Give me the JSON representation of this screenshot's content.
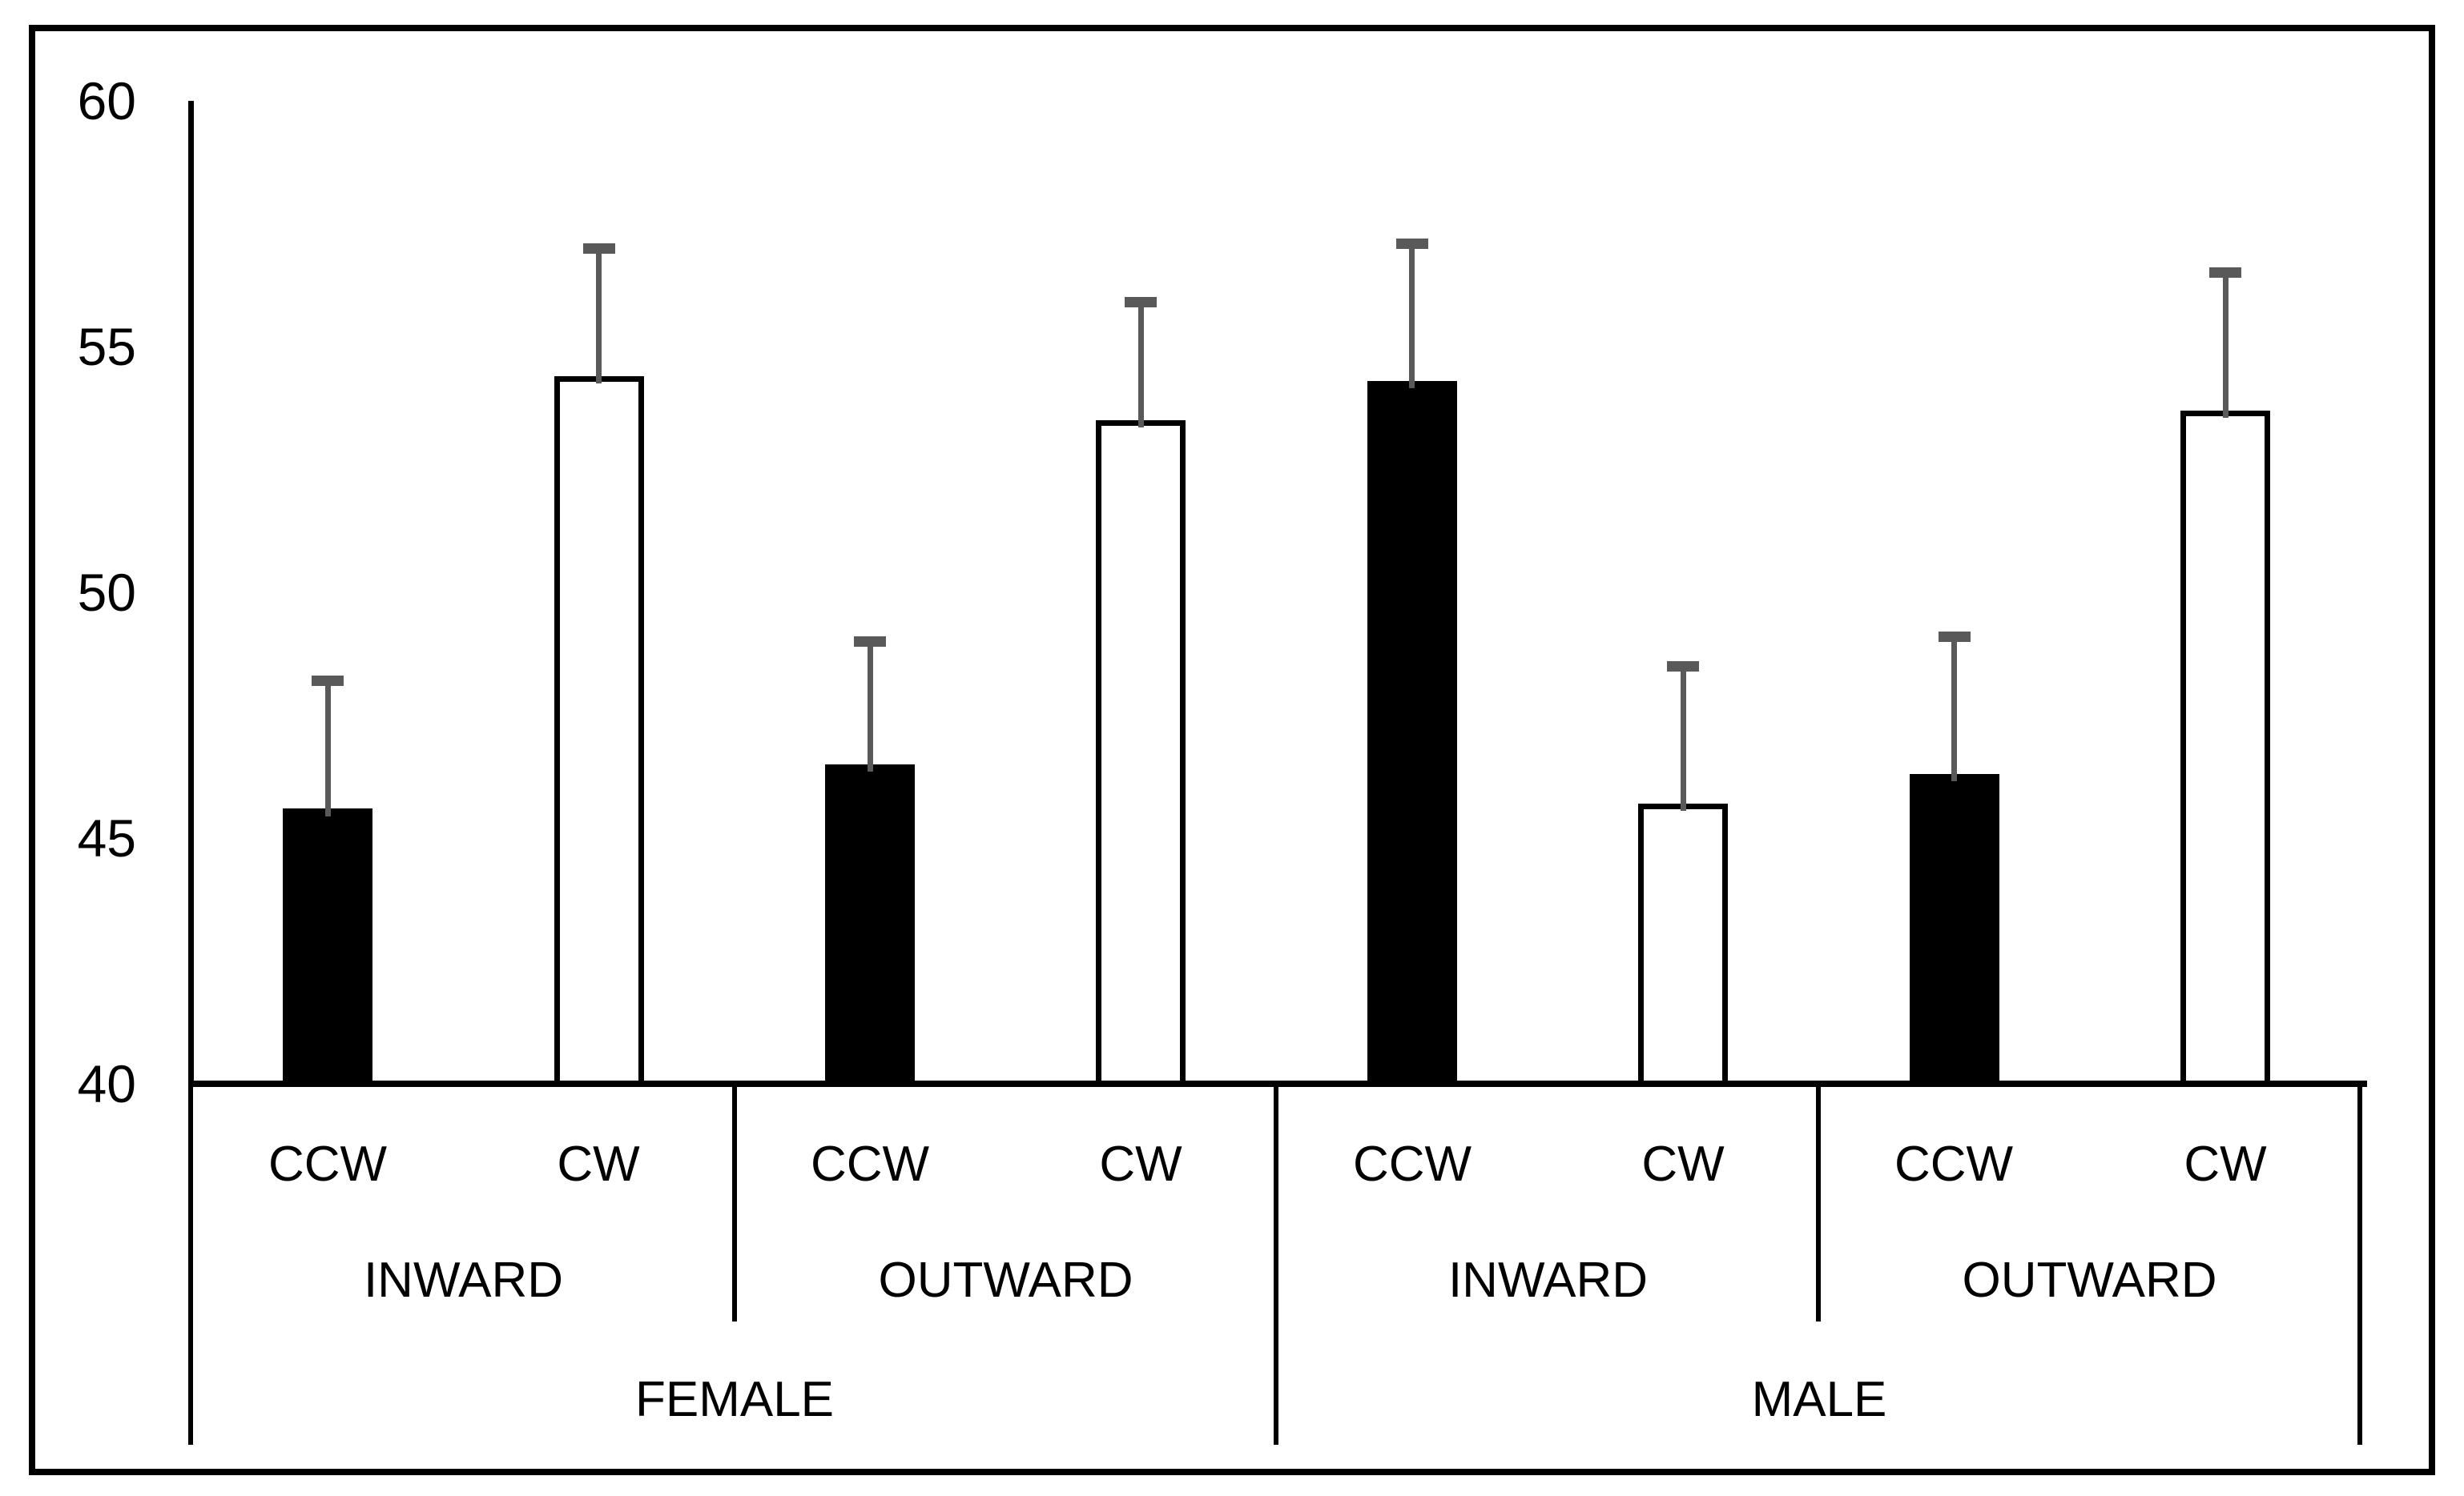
{
  "chart_data": {
    "type": "bar",
    "y_axis": {
      "range": [
        40,
        60
      ],
      "ticks": [
        60,
        55,
        50,
        45,
        40
      ]
    },
    "x_hierarchy": {
      "level1_rotations": [
        "CCW",
        "CW",
        "CCW",
        "CW",
        "CCW",
        "CW",
        "CCW",
        "CW"
      ],
      "level2_directions": [
        {
          "label": "INWARD",
          "span": 2
        },
        {
          "label": "OUTWARD",
          "span": 2
        },
        {
          "label": "INWARD",
          "span": 2
        },
        {
          "label": "OUTWARD",
          "span": 2
        }
      ],
      "level3_sexes": [
        {
          "label": "FEMALE",
          "span": 4
        },
        {
          "label": "MALE",
          "span": 4
        }
      ]
    },
    "bars": [
      {
        "sex": "FEMALE",
        "direction": "INWARD",
        "rotation": "CCW",
        "value": 45.6,
        "error_upper": 2.6,
        "error_top": 48.2,
        "fill": "black"
      },
      {
        "sex": "FEMALE",
        "direction": "INWARD",
        "rotation": "CW",
        "value": 54.4,
        "error_upper": 2.6,
        "error_top": 57.0,
        "fill": "white"
      },
      {
        "sex": "FEMALE",
        "direction": "OUTWARD",
        "rotation": "CCW",
        "value": 46.5,
        "error_upper": 2.5,
        "error_top": 49.0,
        "fill": "black"
      },
      {
        "sex": "FEMALE",
        "direction": "OUTWARD",
        "rotation": "CW",
        "value": 53.5,
        "error_upper": 2.4,
        "error_top": 55.9,
        "fill": "white"
      },
      {
        "sex": "MALE",
        "direction": "INWARD",
        "rotation": "CCW",
        "value": 54.3,
        "error_upper": 2.8,
        "error_top": 57.1,
        "fill": "black"
      },
      {
        "sex": "MALE",
        "direction": "INWARD",
        "rotation": "CW",
        "value": 45.7,
        "error_upper": 2.8,
        "error_top": 48.5,
        "fill": "white"
      },
      {
        "sex": "MALE",
        "direction": "OUTWARD",
        "rotation": "CCW",
        "value": 46.3,
        "error_upper": 2.8,
        "error_top": 49.1,
        "fill": "black"
      },
      {
        "sex": "MALE",
        "direction": "OUTWARD",
        "rotation": "CW",
        "value": 53.7,
        "error_upper": 2.8,
        "error_top": 56.5,
        "fill": "white"
      }
    ],
    "colors": {
      "bar_fill_ccw": "#000000",
      "bar_fill_cw": "#ffffff",
      "bar_outline": "#000000",
      "axis_line": "#000000",
      "text": "#000000",
      "error_bar": "#595959"
    },
    "legend": {
      "visible": false
    },
    "grid": {
      "visible": false
    }
  }
}
